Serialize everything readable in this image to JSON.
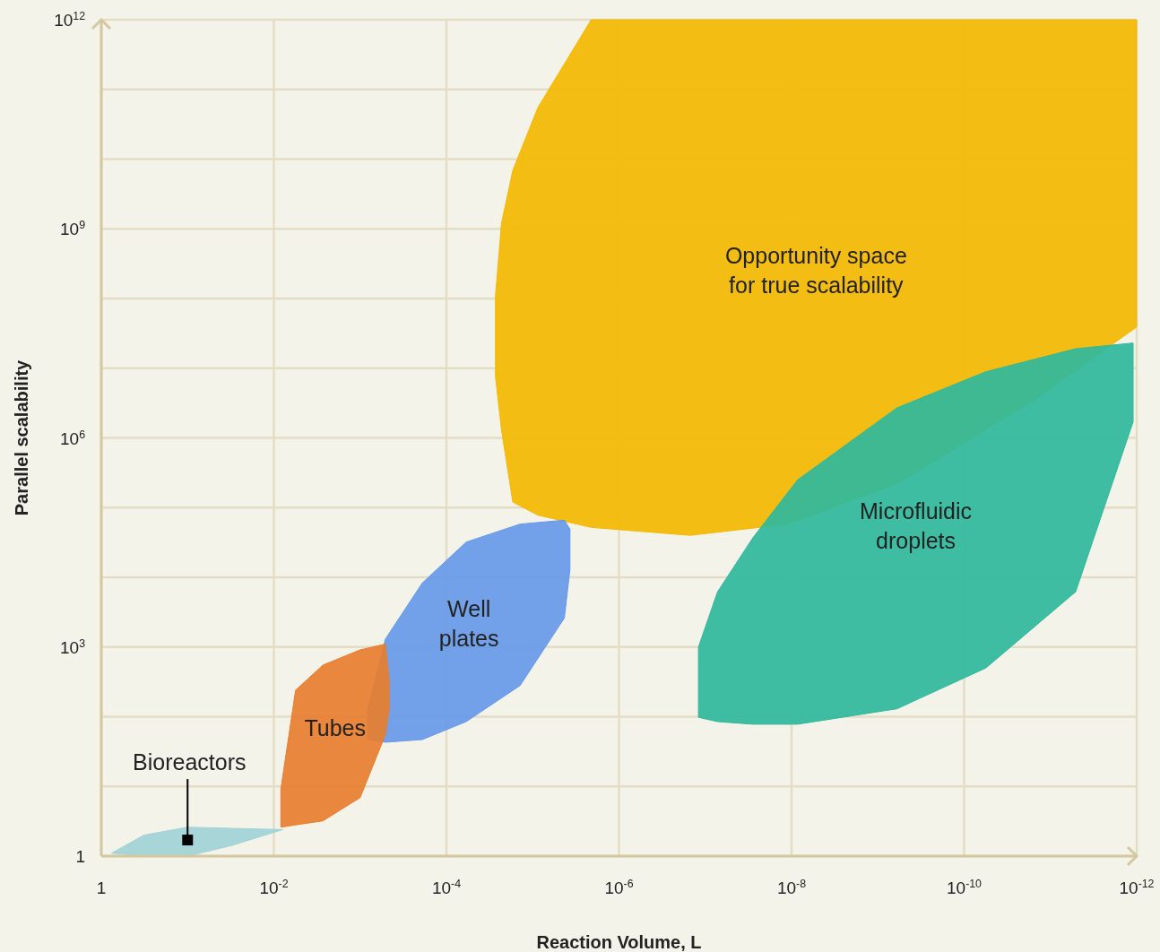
{
  "chart_data": {
    "type": "area",
    "xlabel": "Reaction Volume, L",
    "ylabel": "Parallel scalability",
    "log": "xy",
    "grid": true,
    "xlim": [
      1,
      1e-12
    ],
    "ylim": [
      1,
      1000000000000.0
    ],
    "xticks": [
      1,
      {
        "value": 0.01,
        "label": "10$^{-2}$"
      },
      {
        "value": 0.0001,
        "label": "10$^{-4}$"
      },
      {
        "value": 1e-06,
        "label": "10$^{-6}$"
      },
      {
        "value": 1e-08,
        "label": "10$^{-8}$"
      },
      {
        "value": 1e-10,
        "label": "10$^{-10}$"
      },
      {
        "value": 1e-12,
        "label": "10$^{-12}$"
      }
    ],
    "yticks": [
      1,
      {
        "value": 10,
        "label": null
      },
      {
        "value": 100,
        "label": null
      },
      {
        "value": 1000,
        "label": "10$^{3}$"
      },
      {
        "value": 10000.0,
        "label": null
      },
      {
        "value": 100000.0,
        "label": null
      },
      {
        "value": 1000000.0,
        "label": "10$^{6}$"
      },
      {
        "value": 10000000.0,
        "label": null
      },
      {
        "value": 100000000.0,
        "label": null
      },
      {
        "value": 1000000000.0,
        "label": "10$^{9}$"
      },
      {
        "value": 10000000000.0,
        "label": null
      },
      {
        "value": 100000000000.0,
        "label": null
      },
      {
        "value": 1000000000000.0,
        "label": "10$^{12}$"
      }
    ],
    "series": [
      {
        "name": "Opportunity space for true scalability",
        "color": "#f3b900",
        "x": [
          2.7e-05,
          2.3e-05,
          1.7e-05,
          8.7e-06,
          2.1e-06,
          1.5e-07,
          1.1e-08,
          6e-10,
          1.7e-11,
          1e-12,
          1e-12,
          1.7e-11,
          6e-10,
          1.1e-08,
          1.5e-07,
          2.1e-06,
          8.7e-06,
          1.7e-05,
          2.3e-05,
          2.7e-05
        ],
        "values": [
          110000000.0,
          1200000000.0,
          6900000000.0,
          55000000000.0,
          1000000000000.0,
          1000000000000.0,
          1000000000000.0,
          1000000000000.0,
          1000000000000.0,
          1000000000000.0,
          39000000.0,
          3200000.0,
          220000.0,
          58000.0,
          40000.0,
          52000.0,
          78000.0,
          120000.0,
          1300000.0,
          7600000.0
        ]
      },
      {
        "name": "Microfluidic droplets",
        "color": "#2fb89c",
        "x": [
          1.2e-07,
          7.2e-08,
          2.8e-08,
          8.5e-09,
          6e-10,
          5.6e-11,
          5.1e-12,
          1.1e-12,
          1.1e-12,
          5.1e-12,
          5.6e-11,
          6e-10,
          8.5e-09,
          2.8e-08,
          7.2e-08,
          1.2e-07
        ],
        "values": [
          1000,
          6200,
          37000,
          250000.0,
          2700000.0,
          8900000.0,
          19000000.0,
          23000000.0,
          1700000.0,
          6200,
          500,
          130,
          78,
          78,
          85,
          98
        ]
      },
      {
        "name": "Well plates",
        "color": "#6699e8",
        "x": [
          0.00081,
          0.00051,
          0.00019,
          5.9e-05,
          1.4e-05,
          4.3e-06,
          3.7e-06,
          3.7e-06,
          4.3e-06,
          1.4e-05,
          5.9e-05,
          0.00019,
          0.00051,
          0.00081
        ],
        "values": [
          130,
          1300,
          8300,
          32000,
          58000,
          66000,
          49000,
          13000,
          2600,
          280,
          85,
          47,
          43,
          47
        ]
      },
      {
        "name": "Tubes",
        "color": "#e67e2e",
        "x": [
          0.0083,
          0.0056,
          0.0027,
          0.001,
          0.00051,
          0.00046,
          0.00046,
          0.00051,
          0.001,
          0.0027,
          0.0056,
          0.0083
        ],
        "values": [
          9.1,
          240,
          550,
          910,
          1100,
          320,
          130,
          55,
          6.9,
          3.2,
          2.8,
          2.6
        ]
      },
      {
        "color": "#9fd3d6",
        "x": [
          0.76,
          0.32,
          0.1,
          0.032,
          0.0079,
          0.032,
          0.1,
          0.32
        ],
        "values": [
          1.1,
          2.0,
          2.6,
          2.5,
          2.4,
          1.4,
          1.0,
          1.0
        ]
      }
    ],
    "annotations": [
      {
        "text": "Bioreactors",
        "x": 0.1,
        "y": 1.7
      }
    ]
  }
}
